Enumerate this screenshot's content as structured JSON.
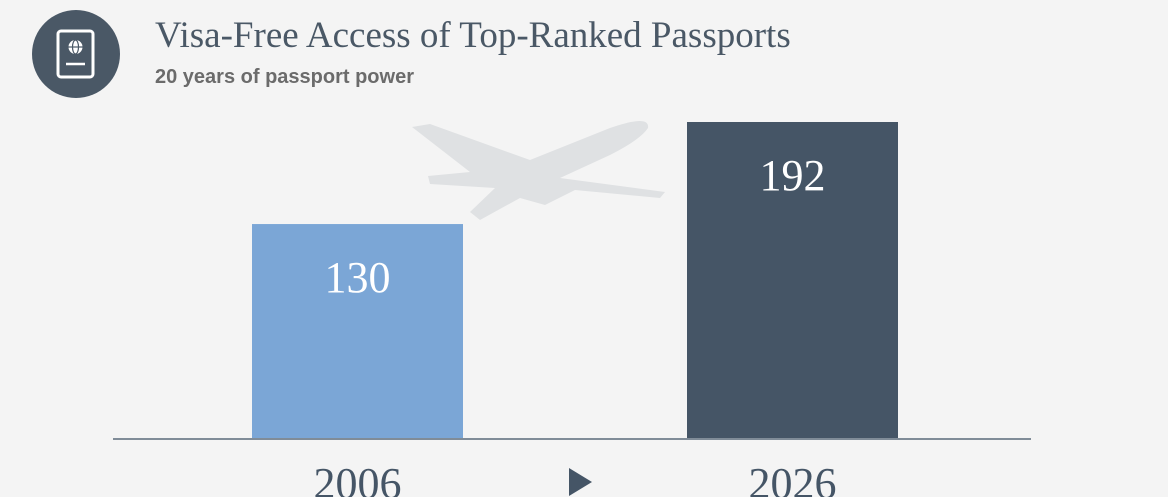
{
  "chart_data": {
    "type": "bar",
    "title": "Visa-Free Access of Top-Ranked Passports",
    "subtitle": "20 years of passport power",
    "categories": [
      "2006",
      "2026"
    ],
    "values": [
      130,
      192
    ],
    "colors": [
      "#7ba6d6",
      "#455566"
    ]
  }
}
